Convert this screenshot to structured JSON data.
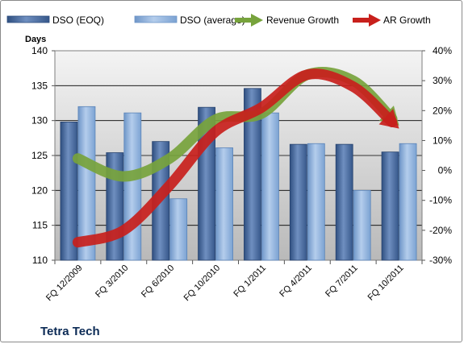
{
  "chart_data": {
    "type": "bar",
    "title": "",
    "company": "Tetra Tech",
    "ylabel": "Days",
    "ylim": [
      110,
      140
    ],
    "y2lim": [
      -30,
      40
    ],
    "yticks": [
      "110",
      "115",
      "120",
      "125",
      "130",
      "135",
      "140"
    ],
    "y2ticks": [
      "-30%",
      "-20%",
      "-10%",
      "0%",
      "10%",
      "20%",
      "30%",
      "40%"
    ],
    "categories": [
      "FQ 12/2009",
      "FQ 3/2010",
      "FQ 6/2010",
      "FQ 10/2010",
      "FQ 1/2011",
      "FQ 4/2011",
      "FQ 7/2011",
      "FQ 10/2011"
    ],
    "legend_position": "top",
    "grid": true,
    "series": [
      {
        "name": "DSO (EOQ)",
        "kind": "bar",
        "axis": "left",
        "color": "#4f6fa3",
        "values": [
          129.8,
          125.4,
          127.0,
          131.9,
          134.6,
          126.6,
          126.6,
          125.5
        ]
      },
      {
        "name": "DSO (average)",
        "kind": "bar",
        "axis": "left",
        "color": "#8fb3de",
        "values": [
          132.0,
          131.1,
          118.8,
          126.1,
          131.1,
          126.7,
          120.0,
          126.7
        ]
      },
      {
        "name": "Revenue Growth",
        "kind": "line",
        "axis": "right",
        "color": "#77a33c",
        "values": [
          4,
          -2,
          4,
          17,
          19,
          32,
          30,
          15
        ]
      },
      {
        "name": "AR Growth",
        "kind": "line",
        "axis": "right",
        "color": "#c8201c",
        "values": [
          -24,
          -20,
          -5,
          13,
          21,
          32,
          28,
          14
        ]
      }
    ]
  }
}
